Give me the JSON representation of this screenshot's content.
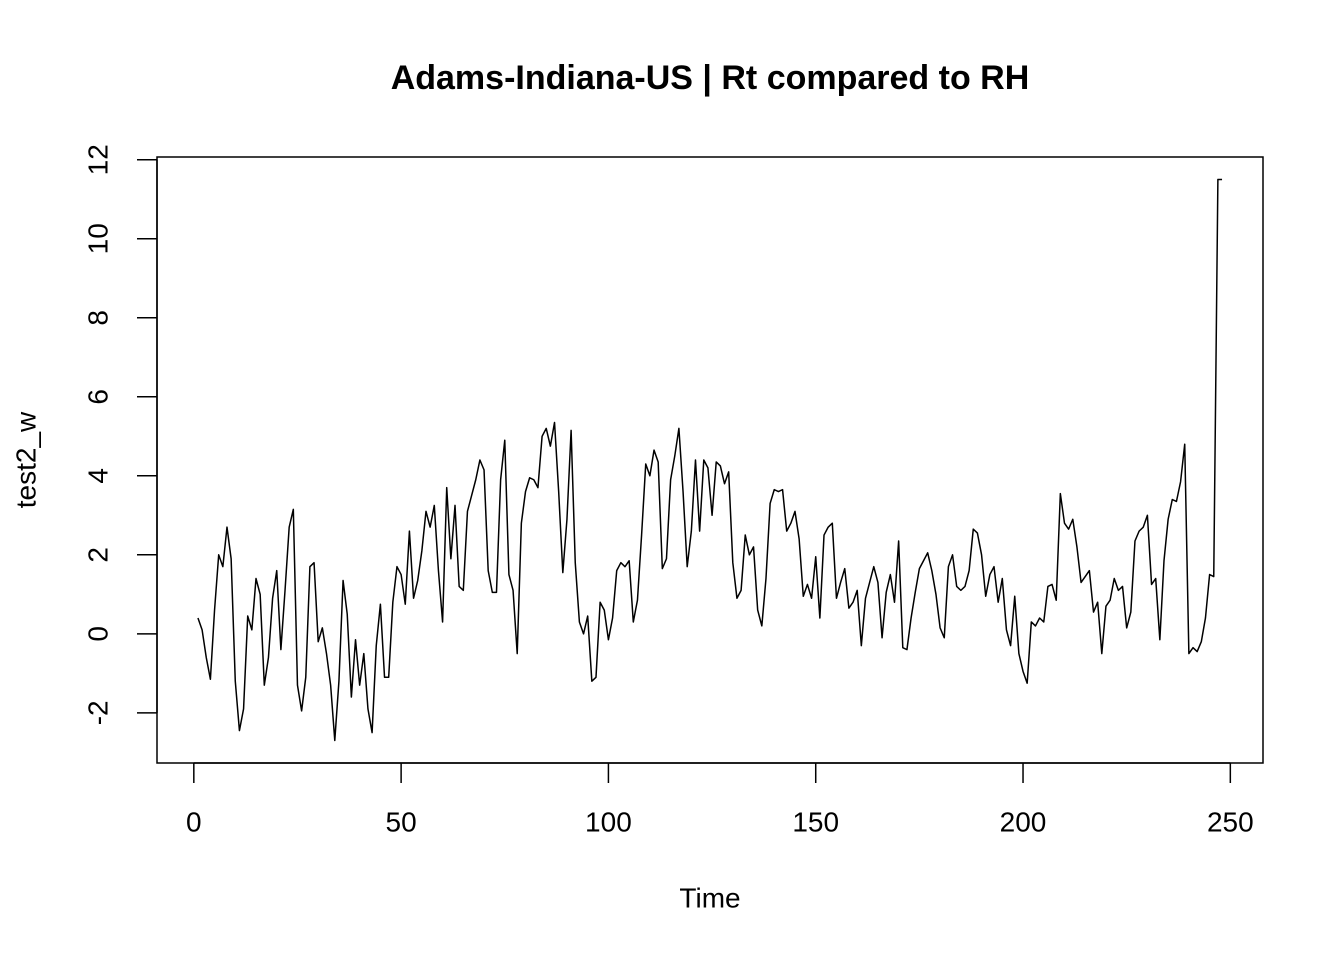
{
  "chart_data": {
    "type": "line",
    "title": "Adams-Indiana-US | Rt compared to RH",
    "x_label": "Time",
    "y_label": "test2_w",
    "x": [
      1,
      2,
      3,
      4,
      5,
      6,
      7,
      8,
      9,
      10,
      11,
      12,
      13,
      14,
      15,
      16,
      17,
      18,
      19,
      20,
      21,
      22,
      23,
      24,
      25,
      26,
      27,
      28,
      29,
      30,
      31,
      32,
      33,
      34,
      35,
      36,
      37,
      38,
      39,
      40,
      41,
      42,
      43,
      44,
      45,
      46,
      47,
      48,
      49,
      50,
      51,
      52,
      53,
      54,
      55,
      56,
      57,
      58,
      59,
      60,
      61,
      62,
      63,
      64,
      65,
      66,
      67,
      68,
      69,
      70,
      71,
      72,
      73,
      74,
      75,
      76,
      77,
      78,
      79,
      80,
      81,
      82,
      83,
      84,
      85,
      86,
      87,
      88,
      89,
      90,
      91,
      92,
      93,
      94,
      95,
      96,
      97,
      98,
      99,
      100,
      101,
      102,
      103,
      104,
      105,
      106,
      107,
      108,
      109,
      110,
      111,
      112,
      113,
      114,
      115,
      116,
      117,
      118,
      119,
      120,
      121,
      122,
      123,
      124,
      125,
      126,
      127,
      128,
      129,
      130,
      131,
      132,
      133,
      134,
      135,
      136,
      137,
      138,
      139,
      140,
      141,
      142,
      143,
      144,
      145,
      146,
      147,
      148,
      149,
      150,
      151,
      152,
      153,
      154,
      155,
      156,
      157,
      158,
      159,
      160,
      161,
      162,
      163,
      164,
      165,
      166,
      167,
      168,
      169,
      170,
      171,
      172,
      173,
      174,
      175,
      176,
      177,
      178,
      179,
      180,
      181,
      182,
      183,
      184,
      185,
      186,
      187,
      188,
      189,
      190,
      191,
      192,
      193,
      194,
      195,
      196,
      197,
      198,
      199,
      200,
      201,
      202,
      203,
      204,
      205,
      206,
      207,
      208,
      209,
      210,
      211,
      212,
      213,
      214,
      215,
      216,
      217,
      218,
      219,
      220,
      221,
      222,
      223,
      224,
      225,
      226,
      227,
      228,
      229,
      230,
      231,
      232,
      233,
      234,
      235,
      236,
      237,
      238,
      239,
      240,
      241,
      242,
      243,
      244,
      245,
      246,
      247,
      248
    ],
    "series": [
      {
        "name": "test2_w",
        "color": "#000000",
        "values": [
          0.4,
          0.1,
          -0.6,
          -1.15,
          0.6,
          2.0,
          1.7,
          2.7,
          1.9,
          -1.2,
          -2.45,
          -1.9,
          0.45,
          0.1,
          1.4,
          1.0,
          -1.3,
          -0.6,
          0.9,
          1.6,
          -0.4,
          1.1,
          2.7,
          3.15,
          -1.3,
          -1.95,
          -1.1,
          1.7,
          1.8,
          -0.2,
          0.15,
          -0.5,
          -1.3,
          -2.7,
          -1.2,
          1.35,
          0.5,
          -1.6,
          -0.15,
          -1.3,
          -0.5,
          -1.9,
          -2.5,
          -0.3,
          0.75,
          -1.1,
          -1.1,
          0.8,
          1.7,
          1.5,
          0.75,
          2.6,
          0.9,
          1.35,
          2.1,
          3.1,
          2.7,
          3.25,
          1.6,
          0.3,
          3.7,
          1.9,
          3.25,
          1.2,
          1.1,
          3.1,
          3.5,
          3.9,
          4.4,
          4.15,
          1.6,
          1.05,
          1.05,
          3.9,
          4.9,
          1.5,
          1.1,
          -0.5,
          2.8,
          3.6,
          3.95,
          3.9,
          3.7,
          5.0,
          5.2,
          4.75,
          5.35,
          3.6,
          1.55,
          2.9,
          5.15,
          1.8,
          0.3,
          0.0,
          0.45,
          -1.2,
          -1.1,
          0.8,
          0.6,
          -0.15,
          0.4,
          1.6,
          1.8,
          1.7,
          1.85,
          0.3,
          0.85,
          2.5,
          4.3,
          4.0,
          4.65,
          4.35,
          1.65,
          1.9,
          3.9,
          4.5,
          5.2,
          3.6,
          1.7,
          2.6,
          4.4,
          2.6,
          4.4,
          4.2,
          3.0,
          4.35,
          4.25,
          3.8,
          4.1,
          1.8,
          0.9,
          1.1,
          2.5,
          2.0,
          2.2,
          0.6,
          0.2,
          1.4,
          3.3,
          3.65,
          3.6,
          3.65,
          2.6,
          2.8,
          3.1,
          2.4,
          0.95,
          1.25,
          0.9,
          1.95,
          0.4,
          2.5,
          2.7,
          2.8,
          0.9,
          1.3,
          1.65,
          0.65,
          0.8,
          1.1,
          -0.3,
          0.9,
          1.3,
          1.7,
          1.3,
          -0.1,
          1.05,
          1.5,
          0.8,
          2.35,
          -0.35,
          -0.4,
          0.4,
          1.05,
          1.65,
          1.85,
          2.05,
          1.6,
          1.0,
          0.15,
          -0.1,
          1.7,
          2.0,
          1.2,
          1.1,
          1.2,
          1.6,
          2.65,
          2.55,
          2.0,
          0.95,
          1.5,
          1.7,
          0.8,
          1.4,
          0.1,
          -0.3,
          0.95,
          -0.5,
          -0.95,
          -1.25,
          0.3,
          0.2,
          0.4,
          0.3,
          1.2,
          1.25,
          0.85,
          3.55,
          2.8,
          2.65,
          2.9,
          2.2,
          1.3,
          1.45,
          1.6,
          0.55,
          0.8,
          -0.5,
          0.7,
          0.85,
          1.4,
          1.1,
          1.2,
          0.15,
          0.55,
          2.35,
          2.6,
          2.7,
          3.0,
          1.25,
          1.4,
          -0.15,
          1.85,
          2.9,
          3.4,
          3.35,
          3.85,
          4.8,
          -0.5,
          -0.35,
          -0.45,
          -0.2,
          0.4,
          1.5,
          1.45,
          11.5,
          11.5
        ]
      }
    ],
    "xlim": [
      -8.88,
      257.88
    ],
    "xticks": [
      0,
      50,
      100,
      150,
      200,
      250
    ],
    "ylim": [
      -3.27,
      12.07
    ],
    "yticks": [
      -2,
      0,
      2,
      4,
      6,
      8,
      10,
      12
    ]
  }
}
